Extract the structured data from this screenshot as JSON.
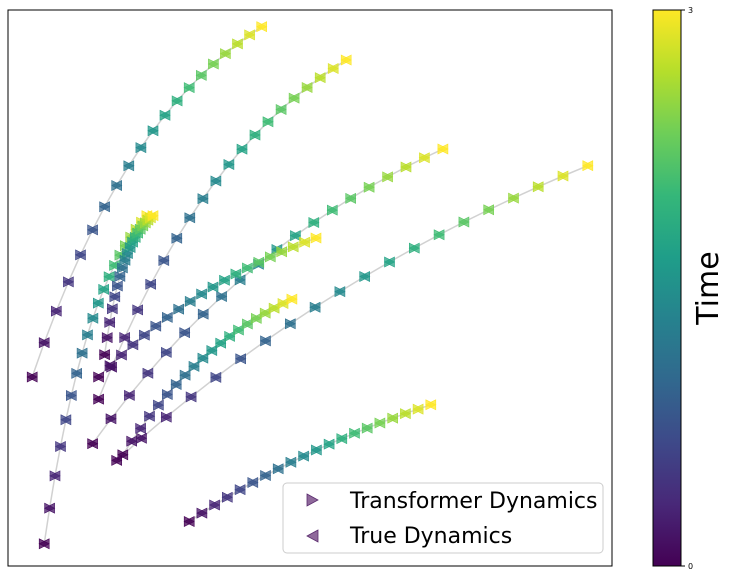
{
  "chart_data": {
    "type": "scatter",
    "title": "",
    "xlabel": "",
    "ylabel": "",
    "xlim": [
      0,
      10
    ],
    "ylim": [
      0,
      10
    ],
    "grid": false,
    "legend": {
      "placement": "lower-right",
      "entries": [
        {
          "label": "Transformer Dynamics",
          "marker": "triangle-right"
        },
        {
          "label": "True Dynamics",
          "marker": "triangle-left"
        }
      ]
    },
    "colorbar": {
      "label": "Time",
      "min": 0,
      "max": 3,
      "ticks": [
        "0",
        "3"
      ],
      "colormap": [
        "#440154",
        "#482878",
        "#3e4989",
        "#31688e",
        "#26828e",
        "#1f9e89",
        "#35b779",
        "#6ece58",
        "#b5de2b",
        "#fde725"
      ]
    },
    "time_range": [
      0,
      3
    ],
    "trajectories": [
      {
        "start": [
          0.4,
          3.4
        ],
        "end": [
          4.2,
          9.7
        ],
        "k": 1.5
      },
      {
        "start": [
          0.6,
          0.4
        ],
        "end": [
          2.3,
          6.3
        ],
        "k": 1.8
      },
      {
        "start": [
          1.5,
          3.0
        ],
        "end": [
          5.6,
          9.1
        ],
        "k": 1.4
      },
      {
        "start": [
          1.4,
          2.2
        ],
        "end": [
          7.2,
          7.5
        ],
        "k": 1.1
      },
      {
        "start": [
          1.8,
          1.9
        ],
        "end": [
          9.6,
          7.2
        ],
        "k": 0.8
      },
      {
        "start": [
          3.0,
          0.8
        ],
        "end": [
          7.0,
          2.9
        ],
        "k": 0.7
      },
      {
        "start": [
          1.5,
          3.4
        ],
        "end": [
          5.1,
          5.9
        ],
        "k": 1.0
      },
      {
        "start": [
          1.9,
          2.0
        ],
        "end": [
          4.7,
          4.8
        ],
        "k": 1.2
      },
      {
        "start": [
          1.6,
          3.8
        ],
        "end": [
          2.4,
          6.3
        ],
        "k": 2.2
      }
    ]
  }
}
